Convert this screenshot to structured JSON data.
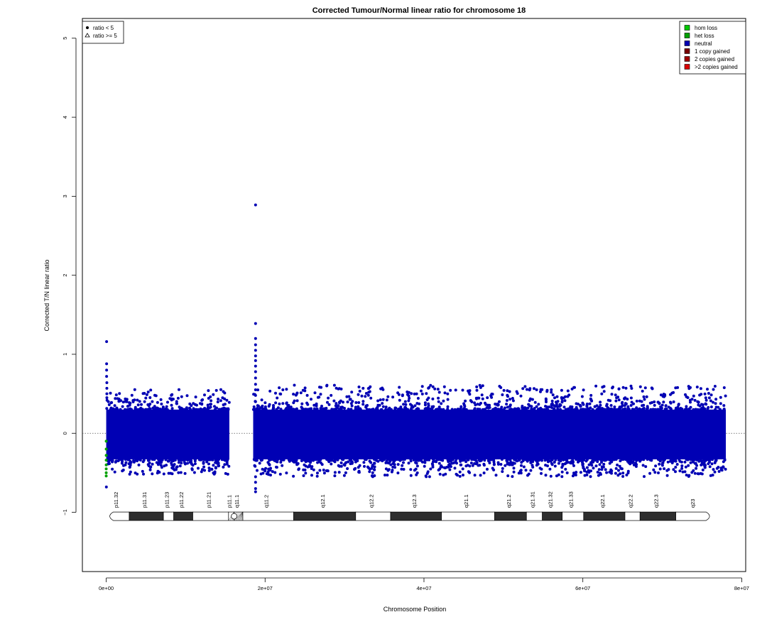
{
  "chart_data": {
    "type": "scatter",
    "title": "Corrected Tumour/Normal linear ratio for chromosome  18",
    "xlabel": "Chromosome Position",
    "ylabel": "Corrected T/N linear ratio",
    "xlim": [
      -3000000,
      80500000
    ],
    "ylim": [
      -1.75,
      5.25
    ],
    "x_ticks": [
      {
        "value": 0,
        "label": "0e+00"
      },
      {
        "value": 20000000,
        "label": "2e+07"
      },
      {
        "value": 40000000,
        "label": "4e+07"
      },
      {
        "value": 60000000,
        "label": "6e+07"
      },
      {
        "value": 80000000,
        "label": "8e+07"
      }
    ],
    "y_ticks": [
      {
        "value": -1,
        "label": "−1"
      },
      {
        "value": 0,
        "label": "0"
      },
      {
        "value": 1,
        "label": "1"
      },
      {
        "value": 2,
        "label": "2"
      },
      {
        "value": 3,
        "label": "3"
      },
      {
        "value": 4,
        "label": "4"
      },
      {
        "value": 5,
        "label": "5"
      }
    ],
    "reference_line": 0,
    "symbol_legend": {
      "placement": "top-left",
      "entries": [
        {
          "label": "ratio < 5",
          "symbol": "dot"
        },
        {
          "label": "ratio >= 5",
          "symbol": "triangle"
        }
      ]
    },
    "color_legend": {
      "placement": "top-right",
      "entries": [
        {
          "label": "hom loss",
          "color": "#00c800"
        },
        {
          "label": "het loss",
          "color": "#00a000"
        },
        {
          "label": "neutral",
          "color": "#0000b4"
        },
        {
          "label": "1 copy gained",
          "color": "#780000"
        },
        {
          "label": "2 copies gained",
          "color": "#a00000"
        },
        {
          "label": ">2 copies gained",
          "color": "#dc0000"
        }
      ]
    },
    "series": [
      {
        "name": "neutral",
        "color": "#0000b4",
        "segments": [
          {
            "x_start": 0,
            "x_end": 15500000,
            "low": -0.33,
            "high": 0.3,
            "y_min": -0.52,
            "y_max": 0.56
          },
          {
            "x_start": 18500000,
            "x_end": 78000000,
            "low": -0.33,
            "high": 0.3,
            "y_min": -0.55,
            "y_max": 0.61
          }
        ],
        "outliers": [
          {
            "x": 50000,
            "y": 1.16
          },
          {
            "x": 50000,
            "y": 0.88
          },
          {
            "x": 50000,
            "y": 0.8
          },
          {
            "x": 50000,
            "y": 0.72
          },
          {
            "x": 80000,
            "y": 0.64
          },
          {
            "x": 80000,
            "y": 0.57
          },
          {
            "x": 80000,
            "y": 0.5
          },
          {
            "x": 80000,
            "y": 0.45
          },
          {
            "x": 20000,
            "y": -0.68
          },
          {
            "x": 18800000,
            "y": 2.89
          },
          {
            "x": 18800000,
            "y": 1.39
          },
          {
            "x": 18800000,
            "y": 1.2
          },
          {
            "x": 18800000,
            "y": 1.12
          },
          {
            "x": 18800000,
            "y": 1.05
          },
          {
            "x": 18800000,
            "y": 0.98
          },
          {
            "x": 18800000,
            "y": 0.92
          },
          {
            "x": 18800000,
            "y": 0.85
          },
          {
            "x": 18800000,
            "y": 0.78
          },
          {
            "x": 18800000,
            "y": 0.7
          },
          {
            "x": 18800000,
            "y": 0.62
          },
          {
            "x": 18800000,
            "y": 0.55
          },
          {
            "x": 18800000,
            "y": 0.48
          },
          {
            "x": 18800000,
            "y": 0.4
          },
          {
            "x": 18800000,
            "y": -0.55
          },
          {
            "x": 18800000,
            "y": -0.62
          },
          {
            "x": 18800000,
            "y": -0.7
          },
          {
            "x": 18800000,
            "y": -0.74
          }
        ]
      },
      {
        "name": "het loss",
        "color": "#00a000",
        "points": [
          {
            "x": 0,
            "y": -0.1
          },
          {
            "x": 0,
            "y": -0.2
          },
          {
            "x": 0,
            "y": -0.28
          },
          {
            "x": 0,
            "y": -0.34
          },
          {
            "x": 0,
            "y": -0.4
          },
          {
            "x": 0,
            "y": -0.45
          },
          {
            "x": 0,
            "y": -0.5
          },
          {
            "x": 0,
            "y": -0.54
          }
        ]
      }
    ],
    "ideogram": {
      "y": -1.05,
      "bands": [
        {
          "name": "p11.32",
          "start": 0,
          "end": 2900000,
          "stain": "gneg"
        },
        {
          "name": "p11.31",
          "start": 2900000,
          "end": 7200000,
          "stain": "gpos"
        },
        {
          "name": "p11.23",
          "start": 7200000,
          "end": 8500000,
          "stain": "gneg"
        },
        {
          "name": "p11.22",
          "start": 8500000,
          "end": 10900000,
          "stain": "gpos"
        },
        {
          "name": "p11.21",
          "start": 10900000,
          "end": 15400000,
          "stain": "gneg"
        },
        {
          "name": "p11.1",
          "start": 15400000,
          "end": 16100000,
          "stain": "acen"
        },
        {
          "name": "q11.1",
          "start": 16100000,
          "end": 17200000,
          "stain": "gvar"
        },
        {
          "name": "q11.2",
          "start": 17200000,
          "end": 23600000,
          "stain": "gneg"
        },
        {
          "name": "q12.1",
          "start": 23600000,
          "end": 31400000,
          "stain": "gpos"
        },
        {
          "name": "q12.2",
          "start": 31400000,
          "end": 35800000,
          "stain": "gneg"
        },
        {
          "name": "q12.3",
          "start": 35800000,
          "end": 42200000,
          "stain": "gpos"
        },
        {
          "name": "q21.1",
          "start": 42200000,
          "end": 48900000,
          "stain": "gneg"
        },
        {
          "name": "q21.2",
          "start": 48900000,
          "end": 52900000,
          "stain": "gpos"
        },
        {
          "name": "q21.31",
          "start": 52900000,
          "end": 54900000,
          "stain": "gneg"
        },
        {
          "name": "q21.32",
          "start": 54900000,
          "end": 57400000,
          "stain": "gpos"
        },
        {
          "name": "q21.33",
          "start": 57400000,
          "end": 60100000,
          "stain": "gneg"
        },
        {
          "name": "q22.1",
          "start": 60100000,
          "end": 65300000,
          "stain": "gpos"
        },
        {
          "name": "q22.2",
          "start": 65300000,
          "end": 67200000,
          "stain": "gneg"
        },
        {
          "name": "q22.3",
          "start": 67200000,
          "end": 71700000,
          "stain": "gpos"
        },
        {
          "name": "q23",
          "start": 71700000,
          "end": 76400000,
          "stain": "gneg"
        }
      ]
    }
  }
}
